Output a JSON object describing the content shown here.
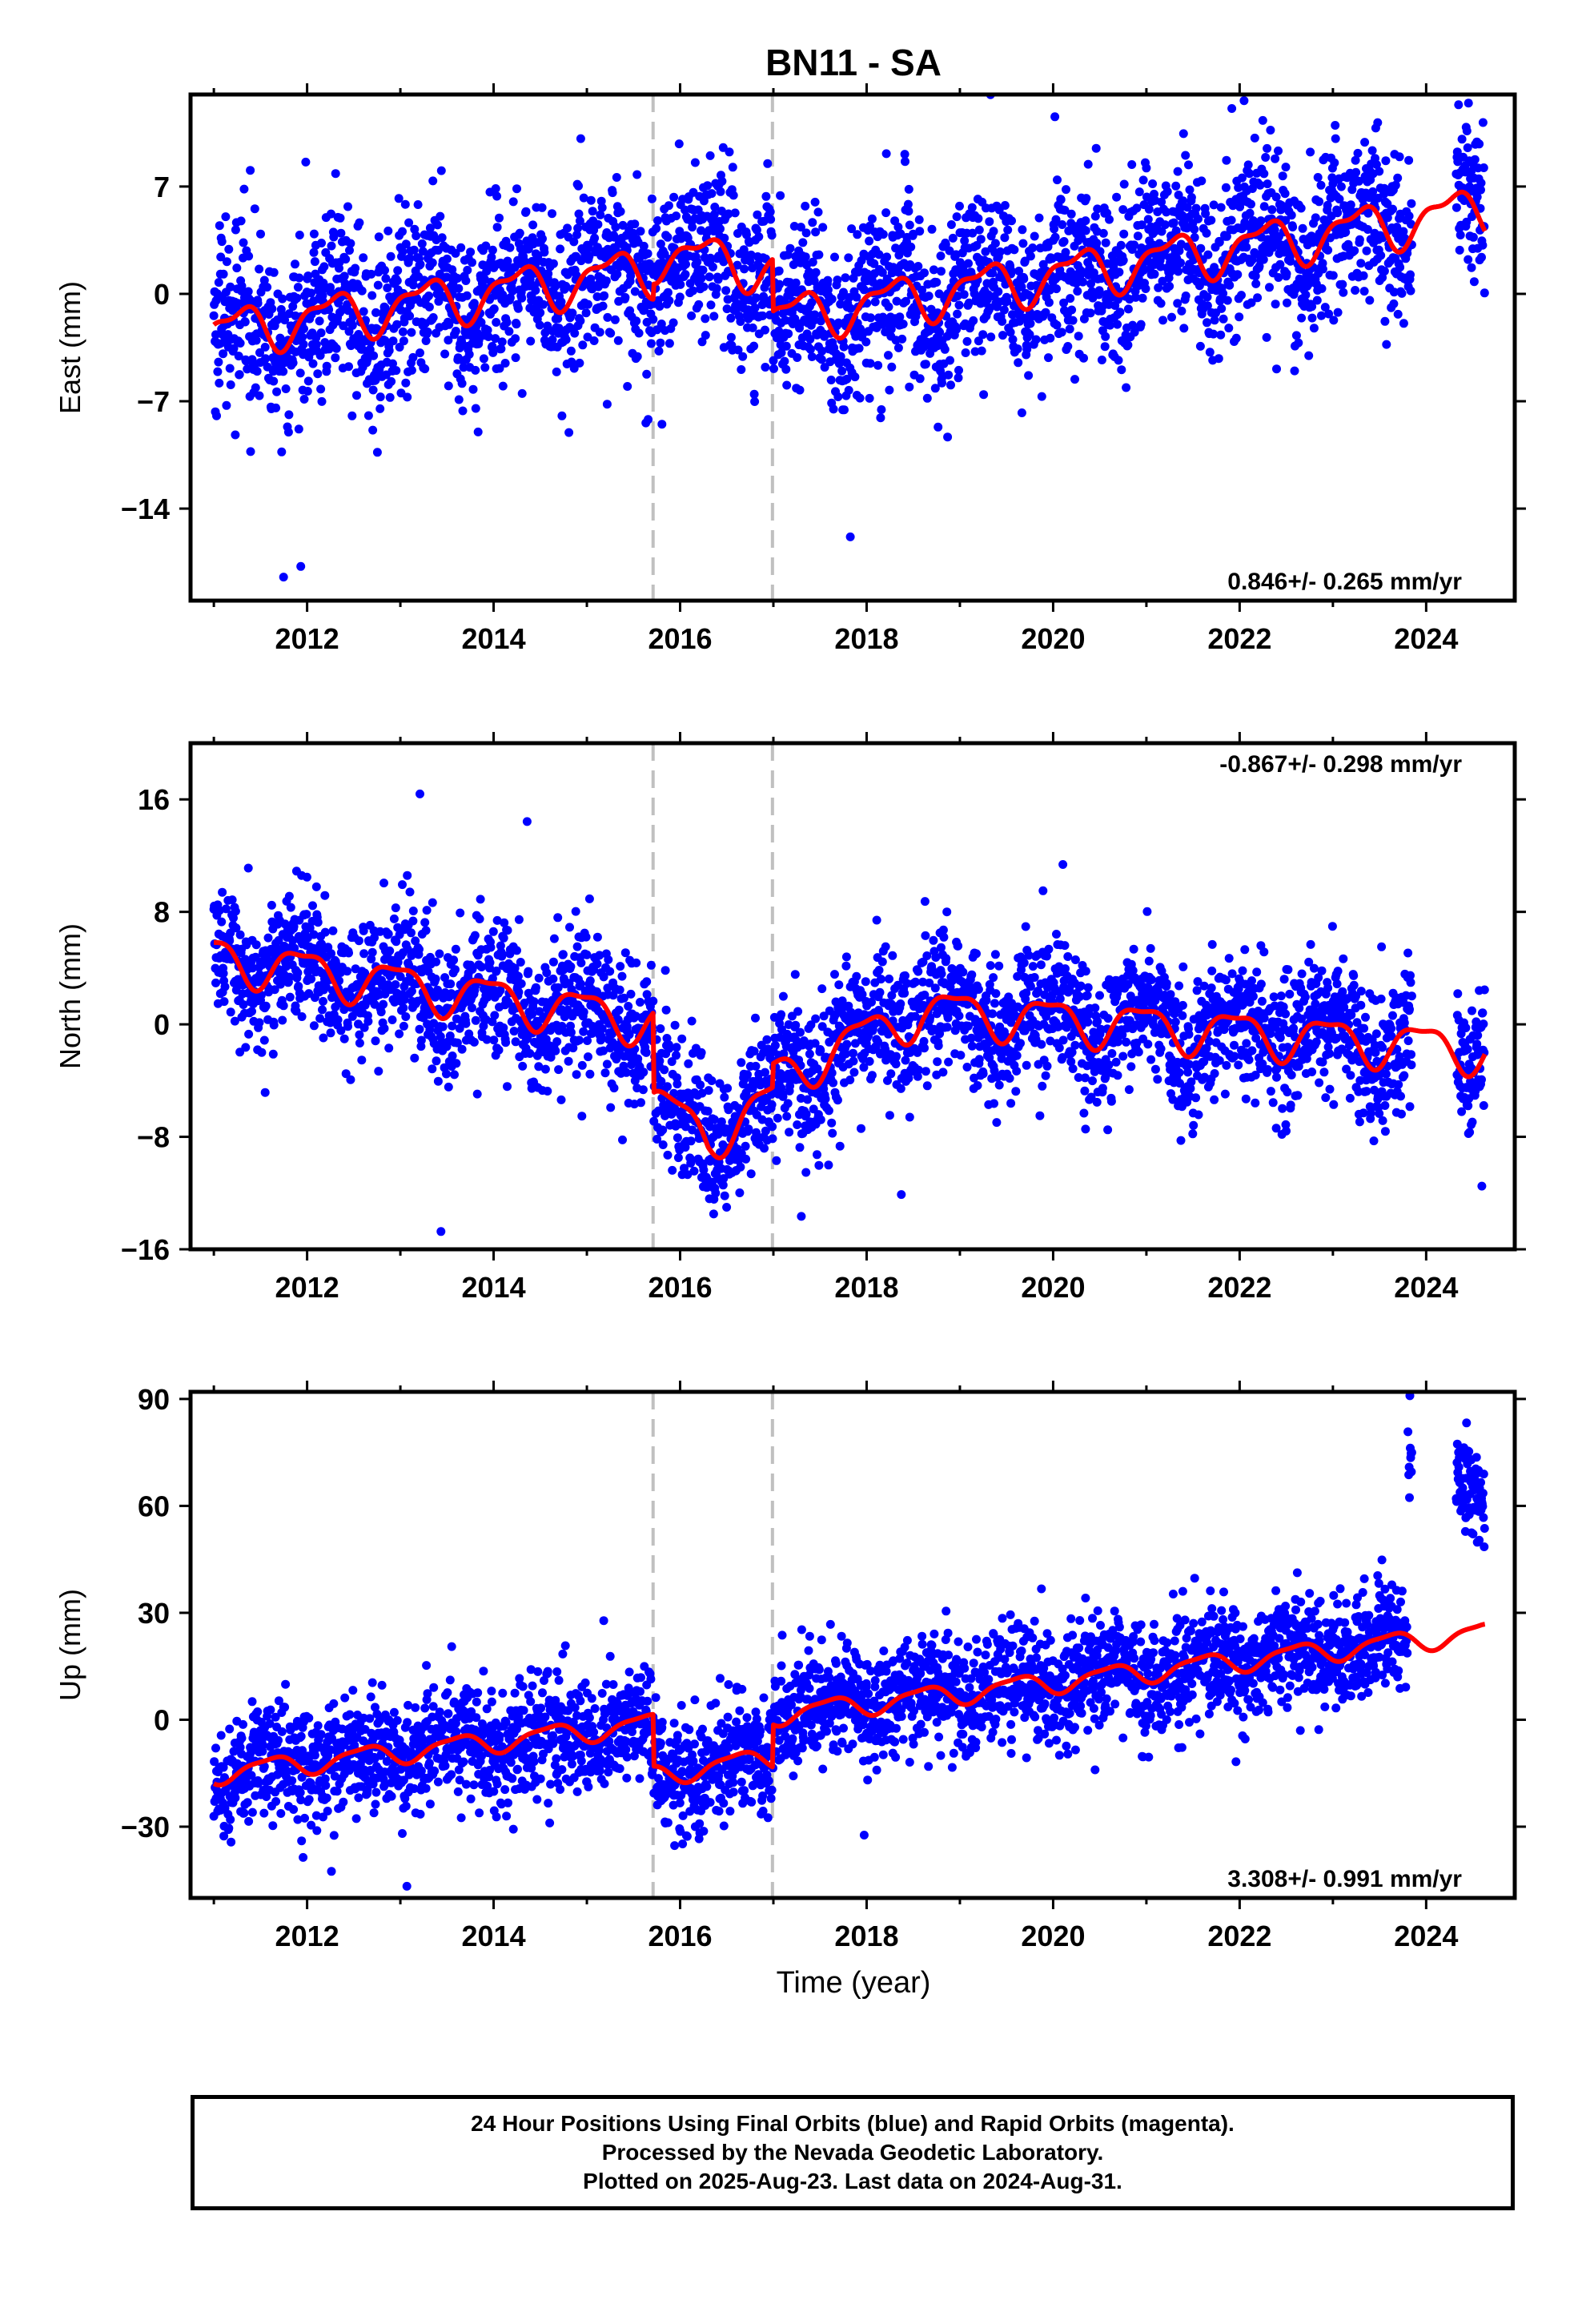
{
  "title": "BN11 - SA",
  "xlabel": "Time (year)",
  "footer": {
    "line1": "24 Hour Positions Using Final Orbits (blue) and Rapid Orbits (magenta).",
    "line2": "Processed by the Nevada Geodetic Laboratory.",
    "line3": "Plotted on 2025-Aug-23. Last data on 2024-Aug-31."
  },
  "colors": {
    "points": "#0000ff",
    "model": "#ff0000",
    "offset_line": "#c0c0c0",
    "frame": "#000000"
  },
  "chart_data": [
    {
      "type": "scatter",
      "component": "East",
      "ylabel": "East (mm)",
      "rate_label": "0.846+/- 0.265 mm/yr",
      "xlim": [
        2010.75,
        2024.95
      ],
      "ylim": [
        -20,
        13
      ],
      "x_ticks": [
        2012,
        2014,
        2016,
        2018,
        2020,
        2022,
        2024
      ],
      "y_ticks": [
        7,
        0,
        -7,
        -14
      ],
      "offsets": [
        2015.71,
        2016.99
      ],
      "series": [
        {
          "kind": "points"
        },
        {
          "kind": "model",
          "trend": {
            "x": [
              2011.0,
              2015.71,
              2015.72,
              2016.99,
              2017.0,
              2024.6
            ],
            "y": [
              -2.5,
              1.6,
              2.6,
              1.8,
              -1.6,
              5.5
            ]
          },
          "annual": {
            "amplitude": 1.4,
            "peak_frac": 0.25
          },
          "semiannual": {
            "amplitude": 0.6,
            "peak_frac": 0.45
          }
        }
      ]
    },
    {
      "type": "scatter",
      "component": "North",
      "ylabel": "North (mm)",
      "rate_label": "-0.867+/- 0.298 mm/yr",
      "xlim": [
        2010.75,
        2024.95
      ],
      "ylim": [
        -16,
        20
      ],
      "x_ticks": [
        2012,
        2014,
        2016,
        2018,
        2020,
        2022,
        2024
      ],
      "y_ticks": [
        16,
        8,
        0,
        -8,
        -16
      ],
      "offsets": [
        2015.71,
        2016.99
      ],
      "series": [
        {
          "kind": "points"
        },
        {
          "kind": "model",
          "trend": {
            "x": [
              2011.0,
              2015.71,
              2015.72,
              2016.3,
              2016.99,
              2017.0,
              2018.6,
              2024.6
            ],
            "y": [
              4.8,
              0.2,
              -5.5,
              -8.0,
              -5.5,
              -3.8,
              1.0,
              -1.8
            ]
          },
          "annual": {
            "amplitude": 1.5,
            "peak_frac": 0.95
          },
          "semiannual": {
            "amplitude": 0.5,
            "peak_frac": 0.2
          }
        }
      ]
    },
    {
      "type": "scatter",
      "component": "Up",
      "ylabel": "Up (mm)",
      "rate_label": "3.308+/- 0.991 mm/yr",
      "xlim": [
        2010.75,
        2024.95
      ],
      "ylim": [
        -50,
        92
      ],
      "x_ticks": [
        2012,
        2014,
        2016,
        2018,
        2020,
        2022,
        2024
      ],
      "y_ticks": [
        90,
        60,
        30,
        0,
        -30
      ],
      "offsets": [
        2015.71,
        2016.99
      ],
      "series": [
        {
          "kind": "points"
        },
        {
          "kind": "model",
          "trend": {
            "x": [
              2011.0,
              2015.71,
              2015.72,
              2016.99,
              2017.0,
              2024.6
            ],
            "y": [
              -15.0,
              -1.0,
              -15.5,
              -10.5,
              1.5,
              24.5
            ]
          },
          "annual": {
            "amplitude": 2.8,
            "peak_frac": 0.6
          },
          "semiannual": {
            "amplitude": 0.8,
            "peak_frac": 0.3
          }
        }
      ]
    }
  ]
}
